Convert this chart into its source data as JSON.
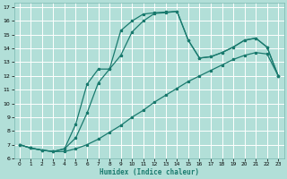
{
  "xlabel": "Humidex (Indice chaleur)",
  "bg_color": "#b2dfd8",
  "grid_color": "#ffffff",
  "line_color": "#1a7a6e",
  "xlim": [
    -0.5,
    23.5
  ],
  "ylim": [
    6,
    17.3
  ],
  "xticks": [
    0,
    1,
    2,
    3,
    4,
    5,
    6,
    7,
    8,
    9,
    10,
    11,
    12,
    13,
    14,
    15,
    16,
    17,
    18,
    19,
    20,
    21,
    22,
    23
  ],
  "yticks": [
    6,
    7,
    8,
    9,
    10,
    11,
    12,
    13,
    14,
    15,
    16,
    17
  ],
  "line1_x": [
    0,
    1,
    2,
    3,
    4,
    5,
    6,
    7,
    8,
    9,
    10,
    11,
    12,
    13,
    14,
    15,
    16,
    17,
    18,
    19,
    20,
    21,
    22,
    23
  ],
  "line1_y": [
    7.0,
    6.75,
    6.6,
    6.5,
    6.5,
    6.7,
    7.0,
    7.4,
    7.9,
    8.4,
    9.0,
    9.5,
    10.1,
    10.6,
    11.1,
    11.6,
    12.0,
    12.4,
    12.8,
    13.2,
    13.5,
    13.7,
    13.6,
    12.0
  ],
  "line2_x": [
    0,
    1,
    2,
    3,
    4,
    5,
    6,
    7,
    8,
    9,
    10,
    11,
    12,
    13,
    14,
    15,
    16,
    17,
    18,
    19,
    20,
    21,
    22,
    23
  ],
  "line2_y": [
    7.0,
    6.75,
    6.6,
    6.5,
    6.7,
    8.5,
    11.4,
    12.5,
    12.5,
    15.3,
    16.0,
    16.5,
    16.6,
    16.65,
    16.7,
    14.6,
    13.3,
    13.4,
    13.7,
    14.1,
    14.6,
    14.75,
    14.1,
    12.0
  ],
  "line3_x": [
    0,
    1,
    2,
    3,
    4,
    5,
    6,
    7,
    8,
    9,
    10,
    11,
    12,
    13,
    14,
    15,
    16,
    17,
    18,
    19,
    20,
    21,
    22,
    23
  ],
  "line3_y": [
    7.0,
    6.75,
    6.6,
    6.5,
    6.7,
    7.5,
    9.3,
    11.5,
    12.5,
    13.5,
    15.2,
    16.0,
    16.55,
    16.6,
    16.7,
    14.6,
    13.3,
    13.4,
    13.7,
    14.1,
    14.6,
    14.75,
    14.1,
    12.0
  ]
}
